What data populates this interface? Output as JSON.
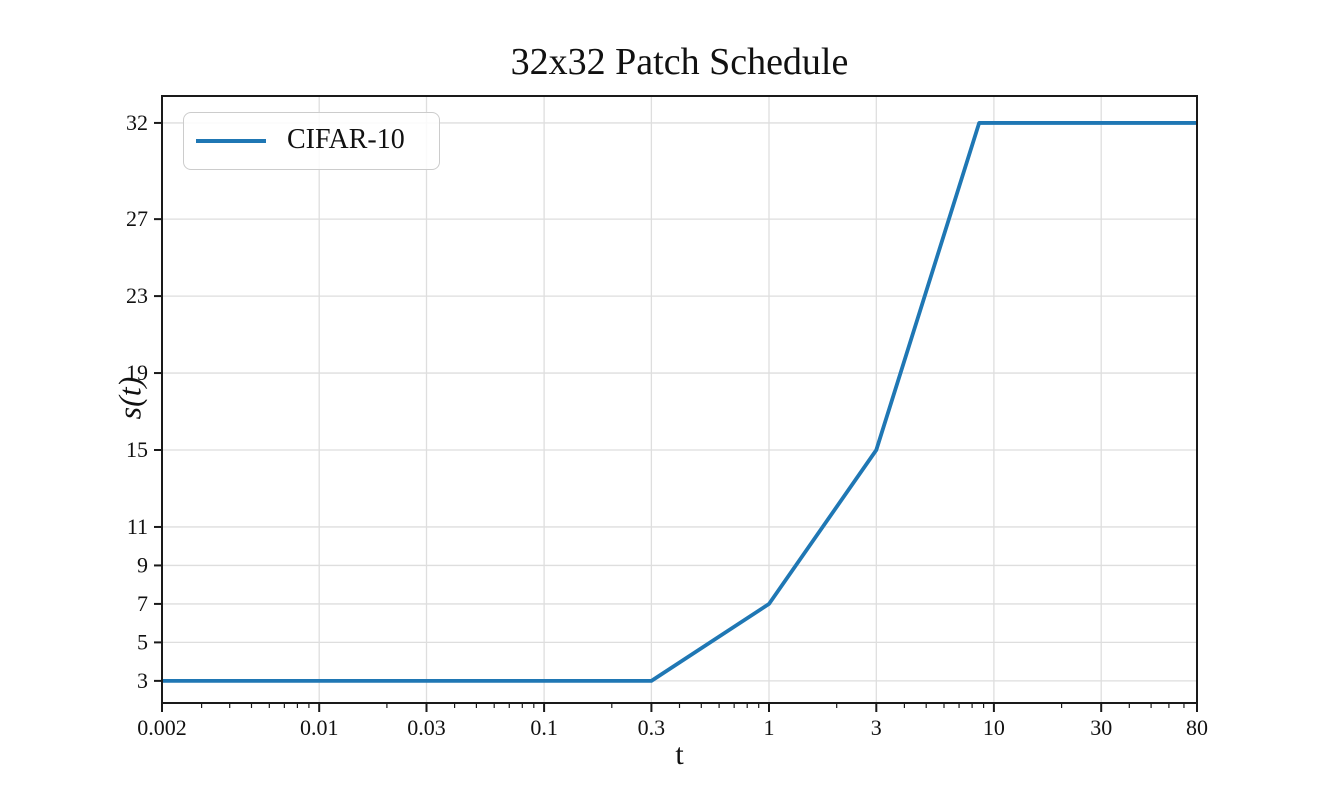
{
  "page": {
    "background": "#ffffff"
  },
  "chart_data": {
    "type": "line",
    "title": "32x32 Patch Schedule",
    "xlabel": "t",
    "ylabel": "s(t)",
    "xscale": "log",
    "yscale": "linear",
    "xlim": [
      0.002,
      80
    ],
    "ylim": [
      1.85,
      33.4
    ],
    "grid": true,
    "x_ticks": {
      "values": [
        0.002,
        0.01,
        0.03,
        0.1,
        0.3,
        1,
        3,
        10,
        30,
        80
      ],
      "labels": [
        "0.002",
        "0.01",
        "0.03",
        "0.1",
        "0.3",
        "1",
        "3",
        "10",
        "30",
        "80"
      ]
    },
    "y_ticks": {
      "values": [
        3,
        5,
        7,
        9,
        11,
        15,
        19,
        23,
        27,
        32
      ],
      "labels": [
        "3",
        "5",
        "7",
        "9",
        "11",
        "15",
        "19",
        "23",
        "27",
        "32"
      ]
    },
    "legend": {
      "position": "upper-left",
      "entries": [
        {
          "label": "CIFAR-10",
          "color": "#1f77b4"
        }
      ]
    },
    "series": [
      {
        "name": "CIFAR-10",
        "color": "#1f77b4",
        "points": [
          [
            0.002,
            3
          ],
          [
            0.3,
            3
          ],
          [
            1,
            7
          ],
          [
            3,
            15
          ],
          [
            8.6,
            32
          ],
          [
            80,
            32
          ]
        ]
      }
    ],
    "colors": {
      "line": "#1f77b4",
      "grid": "#dedede",
      "spine": "#1a1a1a",
      "tick": "#1a1a1a",
      "text": "#111111",
      "legend_border": "#cccccc",
      "legend_bg": "#ffffff"
    }
  }
}
